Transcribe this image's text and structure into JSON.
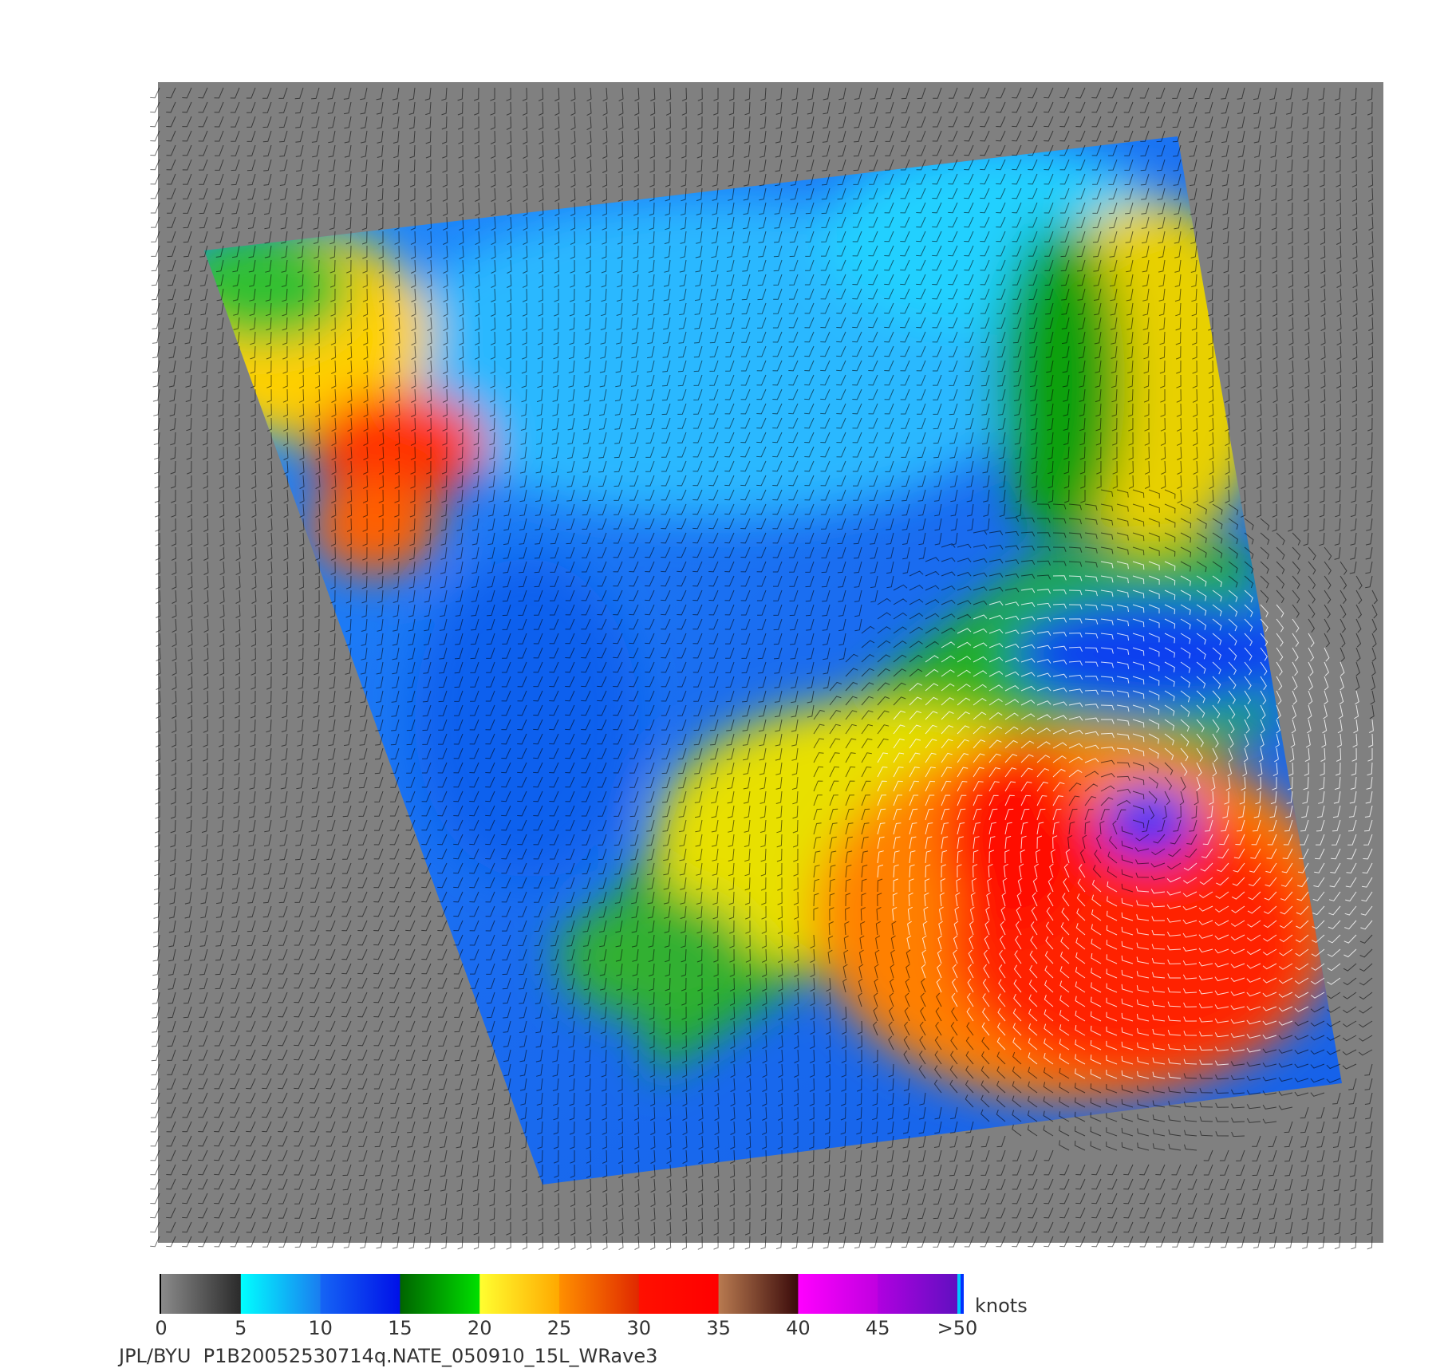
{
  "colorbar": {
    "ticks": [
      0,
      5,
      10,
      15,
      20,
      25,
      30,
      35,
      40,
      45,
      {
        "value": 50,
        "label": ">50"
      }
    ],
    "unit": "knots",
    "segments": [
      [
        "#8a8a8a",
        "#2a2a2a"
      ],
      [
        "#00ffff",
        "#1a7cf0"
      ],
      [
        "#1565f5",
        "#0010e8"
      ],
      [
        "#006400",
        "#00e000"
      ],
      [
        "#ffff30",
        "#ffa800"
      ],
      [
        "#ff9000",
        "#e02800"
      ],
      [
        "#ff1000",
        "#ff0000"
      ],
      [
        "#b87a50",
        "#3a0a0a"
      ],
      [
        "#ff00ff",
        "#c000e0"
      ],
      [
        "#b000e0",
        "#6010c0"
      ]
    ]
  },
  "footer": "JPL/BYU  P1B20052530714q.NATE_050910_15L_WRave3"
}
